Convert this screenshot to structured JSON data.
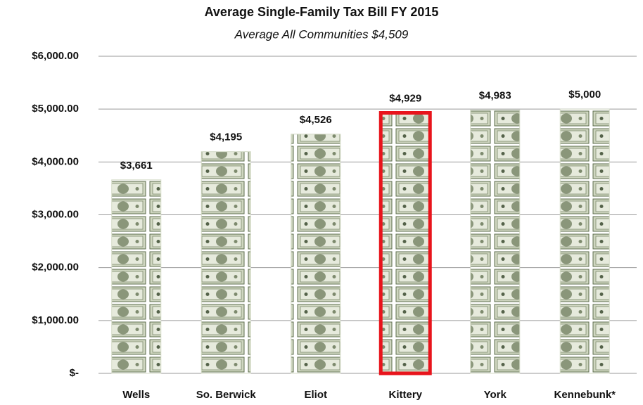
{
  "chart_data": {
    "type": "bar",
    "title": "Average Single-Family Tax Bill FY 2015",
    "subtitle": "Average All Communities $4,509",
    "categories": [
      "Wells",
      "So. Berwick",
      "Eliot",
      "Kittery",
      "York",
      "Kennebunk*"
    ],
    "values": [
      3661,
      4195,
      4526,
      4929,
      4983,
      5000
    ],
    "value_labels": [
      "$3,661",
      "$4,195",
      "$4,526",
      "$4,929",
      "$4,983",
      "$5,000"
    ],
    "color": "#d3dac6",
    "highlight": "Kittery",
    "highlight_color": "#e8141c",
    "ylim": [
      0,
      6000
    ],
    "yticks": [
      {
        "value": 0,
        "label": "$-"
      },
      {
        "value": 1000,
        "label": "$1,000.00"
      },
      {
        "value": 2000,
        "label": "$2,000.00"
      },
      {
        "value": 3000,
        "label": "$3,000.00"
      },
      {
        "value": 4000,
        "label": "$4,000.00"
      },
      {
        "value": 5000,
        "label": "$5,000.00"
      },
      {
        "value": 6000,
        "label": "$6,000.00"
      }
    ],
    "grid": true
  }
}
